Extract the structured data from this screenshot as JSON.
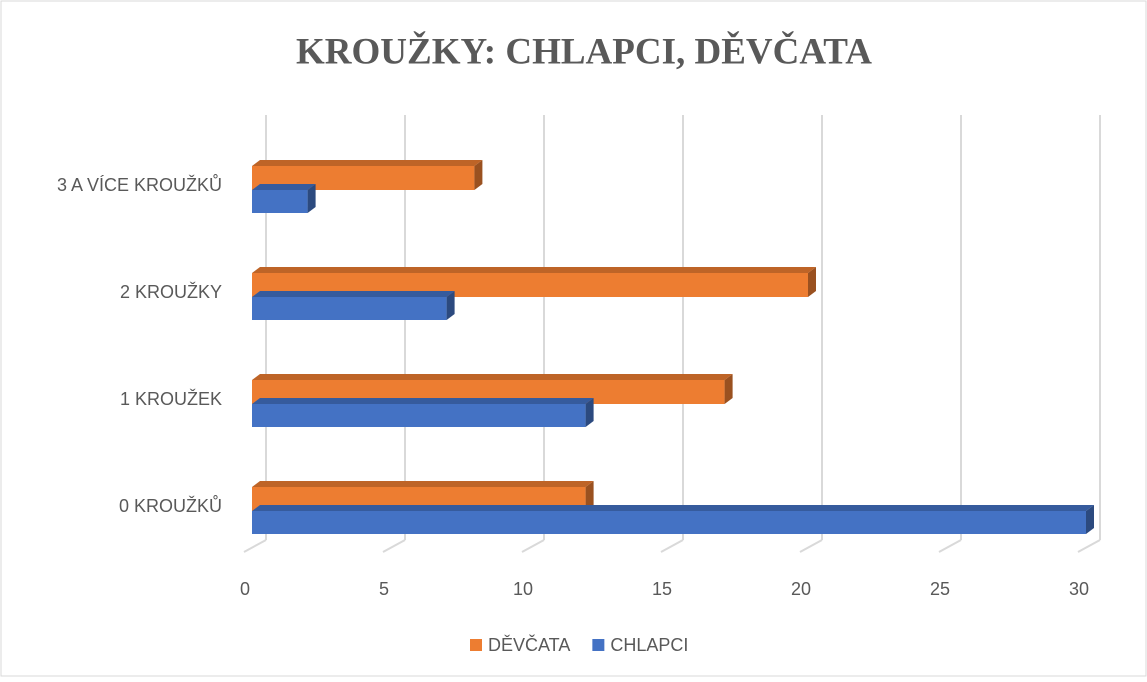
{
  "chart_data": {
    "type": "bar",
    "orientation": "horizontal",
    "title": "KROUŽKY: CHLAPCI, DĚVČATA",
    "categories": [
      "0 KROUŽKŮ",
      "1 KROUŽEK",
      "2 KROUŽKY",
      "3 A VÍCE KROUŽKŮ"
    ],
    "series": [
      {
        "name": "DĚVČATA",
        "color": "#ed7d31",
        "values": [
          12,
          17,
          20,
          8
        ]
      },
      {
        "name": "CHLAPCI",
        "color": "#4472c4",
        "values": [
          30,
          12,
          7,
          2
        ]
      }
    ],
    "xlim": [
      0,
      30
    ],
    "xticks": [
      0,
      5,
      10,
      15,
      20,
      25,
      30
    ],
    "grid": true,
    "legend": "bottom"
  }
}
